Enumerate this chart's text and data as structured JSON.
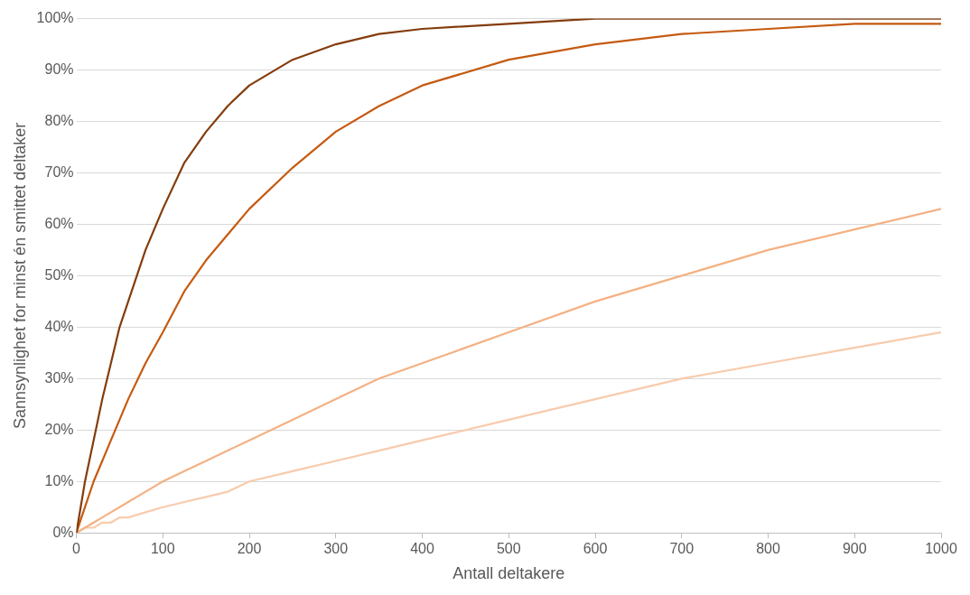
{
  "chart_data": {
    "type": "line",
    "xlabel": "Antall deltakere",
    "ylabel": "Sannsynlighet for minst én smittet deltaker",
    "x": [
      0,
      10,
      20,
      30,
      40,
      50,
      60,
      80,
      100,
      125,
      150,
      175,
      200,
      250,
      300,
      350,
      400,
      500,
      600,
      700,
      800,
      900,
      1000
    ],
    "series": [
      {
        "color": "#843c0c",
        "values": [
          0,
          10,
          18,
          26,
          33,
          40,
          45,
          55,
          63,
          72,
          78,
          83,
          87,
          92,
          95,
          97,
          98,
          99,
          100,
          100,
          100,
          100,
          100
        ]
      },
      {
        "color": "#c55a11",
        "values": [
          0,
          5,
          10,
          14,
          18,
          22,
          26,
          33,
          39,
          47,
          53,
          58,
          63,
          71,
          78,
          83,
          87,
          92,
          95,
          97,
          98,
          99,
          99
        ]
      },
      {
        "color": "#f4b183",
        "values": [
          0,
          1,
          2,
          3,
          4,
          5,
          6,
          8,
          10,
          12,
          14,
          16,
          18,
          22,
          26,
          30,
          33,
          39,
          45,
          50,
          55,
          59,
          63
        ]
      },
      {
        "color": "#f8cbad",
        "values": [
          0,
          1,
          1,
          2,
          2,
          3,
          3,
          4,
          5,
          6,
          7,
          8,
          10,
          12,
          14,
          16,
          18,
          22,
          26,
          30,
          33,
          36,
          39
        ]
      }
    ],
    "xlim": [
      0,
      1000
    ],
    "xticks": [
      0,
      100,
      200,
      300,
      400,
      500,
      600,
      700,
      800,
      900,
      1000
    ],
    "ylim": [
      0,
      100
    ],
    "yticks": [
      {
        "value": 0,
        "label": "0%"
      },
      {
        "value": 10,
        "label": "10%"
      },
      {
        "value": 20,
        "label": "20%"
      },
      {
        "value": 30,
        "label": "30%"
      },
      {
        "value": 40,
        "label": "40%"
      },
      {
        "value": 50,
        "label": "50%"
      },
      {
        "value": 60,
        "label": "60%"
      },
      {
        "value": 70,
        "label": "70%"
      },
      {
        "value": 80,
        "label": "80%"
      },
      {
        "value": 90,
        "label": "90%"
      },
      {
        "value": 100,
        "label": "100%"
      }
    ],
    "grid": "y",
    "legend": false,
    "marker": "none",
    "line_style": "solid"
  }
}
